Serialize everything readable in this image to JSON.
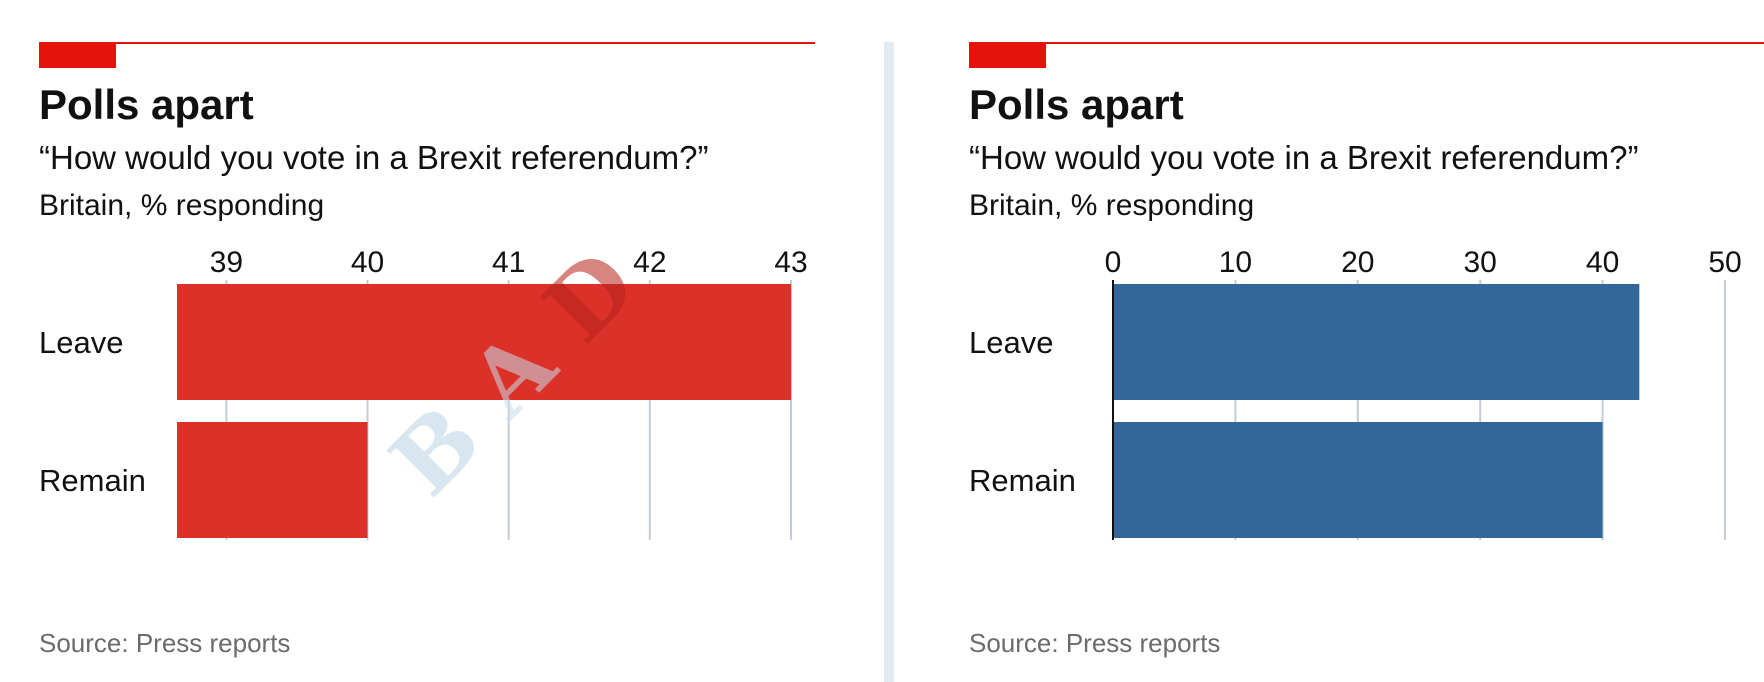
{
  "panels": [
    {
      "title": "Polls apart",
      "subtitle": "“How would you vote in a Brexit referendum?”",
      "units": "Britain, % responding",
      "source": "Source: Press reports"
    },
    {
      "title": "Polls apart",
      "subtitle": "“How would you vote in a Brexit referendum?”",
      "units": "Britain, % responding",
      "source": "Source: Press reports"
    }
  ],
  "watermark": {
    "letters": [
      "B",
      "A",
      "D"
    ]
  },
  "colors": {
    "accent_red": "#e3120b",
    "bar_red": "#db3129",
    "bar_blue": "#336699",
    "grid": "#c4cdd5",
    "divider": "#e3ebf2"
  },
  "chart_data": [
    {
      "type": "bar",
      "orientation": "horizontal",
      "categories": [
        "Leave",
        "Remain"
      ],
      "values": [
        43,
        40
      ],
      "xlim": [
        38.65,
        43
      ],
      "xticks": [
        39,
        40,
        41,
        42,
        43
      ],
      "bar_color": "#db3129",
      "baseline_visible": false,
      "grid": true
    },
    {
      "type": "bar",
      "orientation": "horizontal",
      "categories": [
        "Leave",
        "Remain"
      ],
      "values": [
        43,
        40
      ],
      "xlim": [
        0,
        50
      ],
      "xticks": [
        0,
        10,
        20,
        30,
        40,
        50
      ],
      "bar_color": "#336699",
      "baseline_visible": true,
      "grid": true
    }
  ]
}
